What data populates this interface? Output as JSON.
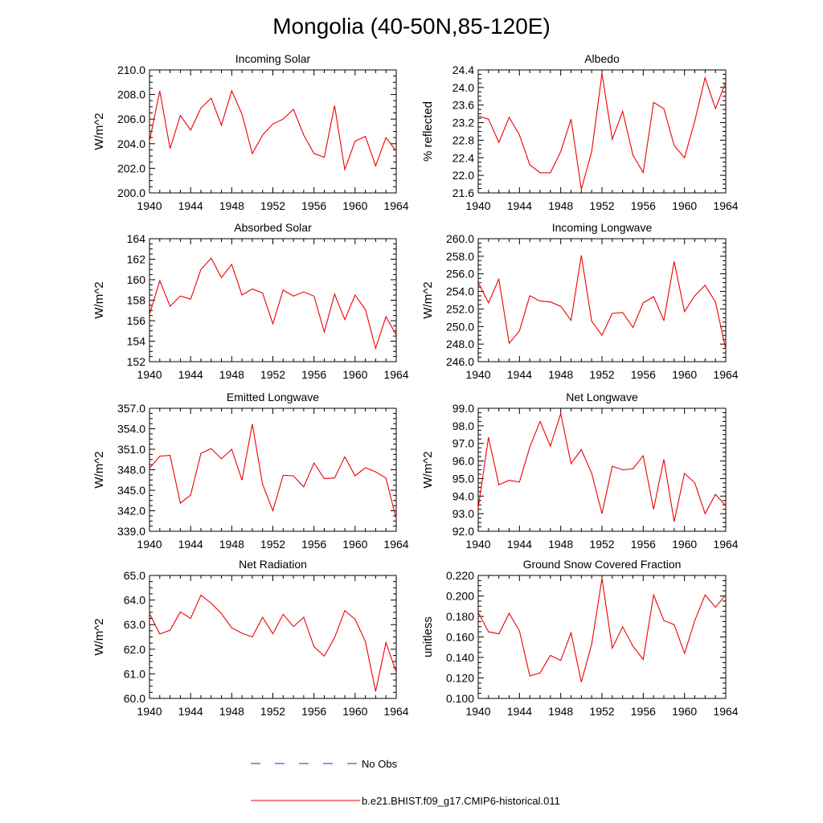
{
  "figure": {
    "title": "Mongolia (40-50N,85-120E)"
  },
  "legend": {
    "entries": [
      {
        "label": "No Obs",
        "color": "#2222cc",
        "style": "dashed"
      },
      {
        "label": "b.e21.BHIST.f09_g17.CMIP6-historical.011",
        "color": "#ee0000",
        "style": "solid"
      }
    ]
  },
  "chart_data": [
    {
      "type": "line",
      "title": "Incoming Solar",
      "ylabel": "W/m^2",
      "ylim": [
        200.0,
        210.0
      ],
      "yticks": [
        "200.0",
        "202.0",
        "204.0",
        "206.0",
        "208.0",
        "210.0"
      ],
      "xlim": [
        1940,
        1964
      ],
      "xticks": [
        "1940",
        "1944",
        "1948",
        "1952",
        "1956",
        "1960",
        "1964"
      ],
      "series": [
        {
          "color": "#ee0000",
          "x": [
            1940,
            1941,
            1942,
            1943,
            1944,
            1945,
            1946,
            1947,
            1948,
            1949,
            1950,
            1951,
            1952,
            1953,
            1954,
            1955,
            1956,
            1957,
            1958,
            1959,
            1960,
            1961,
            1962,
            1963,
            1964
          ],
          "values": [
            204.2,
            208.3,
            203.6,
            206.3,
            205.1,
            206.9,
            207.7,
            205.5,
            208.3,
            206.4,
            203.2,
            204.7,
            205.6,
            206.0,
            206.8,
            204.7,
            203.2,
            202.9,
            207.1,
            201.9,
            204.2,
            204.6,
            202.2,
            204.5,
            203.4
          ]
        }
      ]
    },
    {
      "type": "line",
      "title": "Albedo",
      "ylabel": "% reflected",
      "ylim": [
        21.6,
        24.4
      ],
      "yticks": [
        "21.6",
        "22.0",
        "22.4",
        "22.8",
        "23.2",
        "23.6",
        "24.0",
        "24.4"
      ],
      "xlim": [
        1940,
        1964
      ],
      "xticks": [
        "1940",
        "1944",
        "1948",
        "1952",
        "1956",
        "1960",
        "1964"
      ],
      "series": [
        {
          "color": "#ee0000",
          "x": [
            1940,
            1941,
            1942,
            1943,
            1944,
            1945,
            1946,
            1947,
            1948,
            1949,
            1950,
            1951,
            1952,
            1953,
            1954,
            1955,
            1956,
            1957,
            1958,
            1959,
            1960,
            1961,
            1962,
            1963,
            1964
          ],
          "values": [
            23.35,
            23.28,
            22.75,
            23.32,
            22.92,
            22.24,
            22.06,
            22.06,
            22.54,
            23.28,
            21.68,
            22.54,
            24.32,
            22.82,
            23.46,
            22.46,
            22.06,
            23.66,
            23.52,
            22.68,
            22.4,
            23.24,
            24.22,
            23.52,
            24.12
          ]
        }
      ]
    },
    {
      "type": "line",
      "title": "Absorbed Solar",
      "ylabel": "W/m^2",
      "ylim": [
        152,
        164
      ],
      "yticks": [
        "152",
        "154",
        "156",
        "158",
        "160",
        "162",
        "164"
      ],
      "xlim": [
        1940,
        1964
      ],
      "xticks": [
        "1940",
        "1944",
        "1948",
        "1952",
        "1956",
        "1960",
        "1964"
      ],
      "series": [
        {
          "color": "#ee0000",
          "x": [
            1940,
            1941,
            1942,
            1943,
            1944,
            1945,
            1946,
            1947,
            1948,
            1949,
            1950,
            1951,
            1952,
            1953,
            1954,
            1955,
            1956,
            1957,
            1958,
            1959,
            1960,
            1961,
            1962,
            1963,
            1964
          ],
          "values": [
            156.6,
            159.9,
            157.4,
            158.4,
            158.1,
            161.0,
            162.1,
            160.2,
            161.5,
            158.5,
            159.1,
            158.7,
            155.7,
            159.0,
            158.4,
            158.8,
            158.4,
            154.9,
            158.6,
            156.1,
            158.5,
            157.1,
            153.3,
            156.4,
            154.6
          ]
        }
      ]
    },
    {
      "type": "line",
      "title": "Incoming Longwave",
      "ylabel": "W/m^2",
      "ylim": [
        246.0,
        260.0
      ],
      "yticks": [
        "246.0",
        "248.0",
        "250.0",
        "252.0",
        "254.0",
        "256.0",
        "258.0",
        "260.0"
      ],
      "xlim": [
        1940,
        1964
      ],
      "xticks": [
        "1940",
        "1944",
        "1948",
        "1952",
        "1956",
        "1960",
        "1964"
      ],
      "series": [
        {
          "color": "#ee0000",
          "x": [
            1940,
            1941,
            1942,
            1943,
            1944,
            1945,
            1946,
            1947,
            1948,
            1949,
            1950,
            1951,
            1952,
            1953,
            1954,
            1955,
            1956,
            1957,
            1958,
            1959,
            1960,
            1961,
            1962,
            1963,
            1964
          ],
          "values": [
            255.0,
            252.7,
            255.4,
            248.1,
            249.5,
            253.5,
            252.9,
            252.8,
            252.3,
            250.7,
            258.1,
            250.6,
            249.0,
            251.5,
            251.6,
            249.9,
            252.7,
            253.4,
            250.7,
            257.4,
            251.7,
            253.5,
            254.7,
            252.8,
            247.4
          ]
        }
      ]
    },
    {
      "type": "line",
      "title": "Emitted Longwave",
      "ylabel": "W/m^2",
      "ylim": [
        339.0,
        357.0
      ],
      "yticks": [
        "339.0",
        "342.0",
        "345.0",
        "348.0",
        "351.0",
        "354.0",
        "357.0"
      ],
      "xlim": [
        1940,
        1964
      ],
      "xticks": [
        "1940",
        "1944",
        "1948",
        "1952",
        "1956",
        "1960",
        "1964"
      ],
      "series": [
        {
          "color": "#ee0000",
          "x": [
            1940,
            1941,
            1942,
            1943,
            1944,
            1945,
            1946,
            1947,
            1948,
            1949,
            1950,
            1951,
            1952,
            1953,
            1954,
            1955,
            1956,
            1957,
            1958,
            1959,
            1960,
            1961,
            1962,
            1963,
            1964
          ],
          "values": [
            348.2,
            350.0,
            350.1,
            343.1,
            344.3,
            350.4,
            351.1,
            349.6,
            351.0,
            346.5,
            354.7,
            345.9,
            342.0,
            347.2,
            347.1,
            345.5,
            349.0,
            346.7,
            346.8,
            349.9,
            347.1,
            348.3,
            347.7,
            346.8,
            340.8
          ]
        }
      ]
    },
    {
      "type": "line",
      "title": "Net Longwave",
      "ylabel": "W/m^2",
      "ylim": [
        92.0,
        99.0
      ],
      "yticks": [
        "92.0",
        "93.0",
        "94.0",
        "95.0",
        "96.0",
        "97.0",
        "98.0",
        "99.0"
      ],
      "xlim": [
        1940,
        1964
      ],
      "xticks": [
        "1940",
        "1944",
        "1948",
        "1952",
        "1956",
        "1960",
        "1964"
      ],
      "series": [
        {
          "color": "#ee0000",
          "x": [
            1940,
            1941,
            1942,
            1943,
            1944,
            1945,
            1946,
            1947,
            1948,
            1949,
            1950,
            1951,
            1952,
            1953,
            1954,
            1955,
            1956,
            1957,
            1958,
            1959,
            1960,
            1961,
            1962,
            1963,
            1964
          ],
          "values": [
            93.3,
            97.35,
            94.65,
            94.9,
            94.8,
            96.8,
            98.25,
            96.85,
            98.7,
            95.85,
            96.65,
            95.3,
            93.0,
            95.7,
            95.5,
            95.55,
            96.3,
            93.25,
            96.1,
            92.55,
            95.3,
            94.75,
            93.0,
            94.1,
            93.45
          ]
        }
      ]
    },
    {
      "type": "line",
      "title": "Net Radiation",
      "ylabel": "W/m^2",
      "ylim": [
        60.0,
        65.0
      ],
      "yticks": [
        "60.0",
        "61.0",
        "62.0",
        "63.0",
        "64.0",
        "65.0"
      ],
      "xlim": [
        1940,
        1964
      ],
      "xticks": [
        "1940",
        "1944",
        "1948",
        "1952",
        "1956",
        "1960",
        "1964"
      ],
      "series": [
        {
          "color": "#ee0000",
          "x": [
            1940,
            1941,
            1942,
            1943,
            1944,
            1945,
            1946,
            1947,
            1948,
            1949,
            1950,
            1951,
            1952,
            1953,
            1954,
            1955,
            1956,
            1957,
            1958,
            1959,
            1960,
            1961,
            1962,
            1963,
            1964
          ],
          "values": [
            63.45,
            62.62,
            62.77,
            63.52,
            63.25,
            64.2,
            63.87,
            63.45,
            62.87,
            62.65,
            62.5,
            63.3,
            62.63,
            63.42,
            62.92,
            63.3,
            62.1,
            61.72,
            62.47,
            63.57,
            63.22,
            62.32,
            60.28,
            62.27,
            61.07
          ]
        }
      ]
    },
    {
      "type": "line",
      "title": "Ground Snow Covered Fraction",
      "ylabel": "unitless",
      "ylim": [
        0.1,
        0.22
      ],
      "yticks": [
        "0.100",
        "0.120",
        "0.140",
        "0.160",
        "0.180",
        "0.200",
        "0.220"
      ],
      "xlim": [
        1940,
        1964
      ],
      "xticks": [
        "1940",
        "1944",
        "1948",
        "1952",
        "1956",
        "1960",
        "1964"
      ],
      "series": [
        {
          "color": "#ee0000",
          "x": [
            1940,
            1941,
            1942,
            1943,
            1944,
            1945,
            1946,
            1947,
            1948,
            1949,
            1950,
            1951,
            1952,
            1953,
            1954,
            1955,
            1956,
            1957,
            1958,
            1959,
            1960,
            1961,
            1962,
            1963,
            1964
          ],
          "values": [
            0.184,
            0.165,
            0.163,
            0.183,
            0.166,
            0.122,
            0.125,
            0.142,
            0.137,
            0.164,
            0.116,
            0.153,
            0.217,
            0.149,
            0.17,
            0.151,
            0.138,
            0.201,
            0.176,
            0.172,
            0.144,
            0.176,
            0.201,
            0.189,
            0.201
          ]
        }
      ]
    }
  ]
}
